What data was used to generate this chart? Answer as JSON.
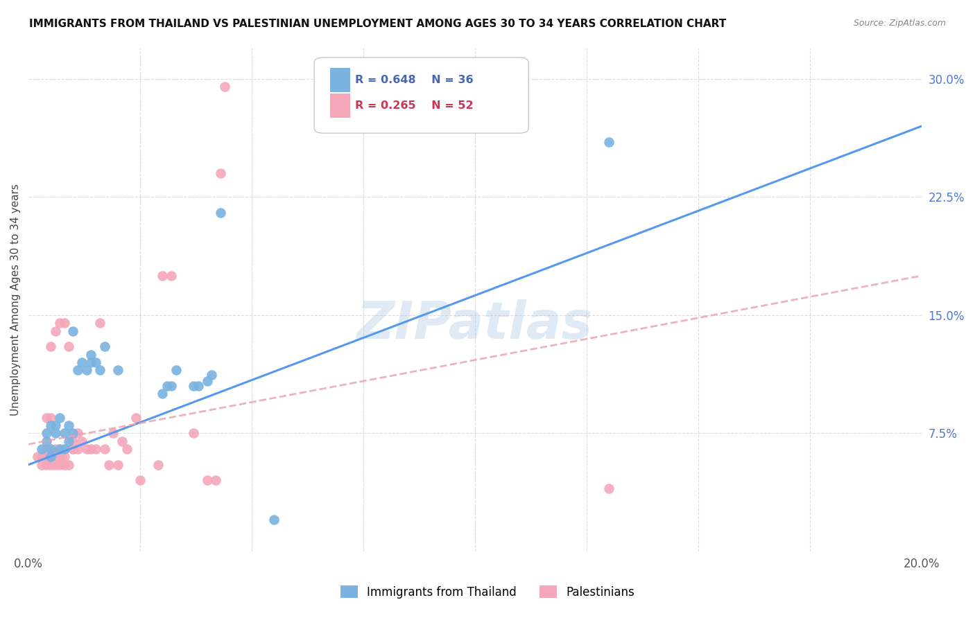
{
  "title": "IMMIGRANTS FROM THAILAND VS PALESTINIAN UNEMPLOYMENT AMONG AGES 30 TO 34 YEARS CORRELATION CHART",
  "source": "Source: ZipAtlas.com",
  "ylabel": "Unemployment Among Ages 30 to 34 years",
  "xlim": [
    0.0,
    0.2
  ],
  "ylim": [
    0.0,
    0.32
  ],
  "xticks": [
    0.0,
    0.025,
    0.05,
    0.075,
    0.1,
    0.125,
    0.15,
    0.175,
    0.2
  ],
  "yticks_right": [
    0.075,
    0.15,
    0.225,
    0.3
  ],
  "grid_color": "#dddddd",
  "background_color": "#ffffff",
  "watermark": "ZIPatlas",
  "blue_color": "#7ab3e0",
  "pink_color": "#f4a7b9",
  "line_blue": "#5599ee",
  "line_pink": "#e8a0b0",
  "blue_scatter": [
    [
      0.003,
      0.065
    ],
    [
      0.004,
      0.07
    ],
    [
      0.004,
      0.075
    ],
    [
      0.005,
      0.06
    ],
    [
      0.005,
      0.065
    ],
    [
      0.005,
      0.08
    ],
    [
      0.006,
      0.075
    ],
    [
      0.006,
      0.08
    ],
    [
      0.007,
      0.065
    ],
    [
      0.007,
      0.085
    ],
    [
      0.008,
      0.065
    ],
    [
      0.008,
      0.075
    ],
    [
      0.009,
      0.07
    ],
    [
      0.009,
      0.08
    ],
    [
      0.01,
      0.075
    ],
    [
      0.01,
      0.14
    ],
    [
      0.011,
      0.115
    ],
    [
      0.012,
      0.12
    ],
    [
      0.013,
      0.115
    ],
    [
      0.014,
      0.12
    ],
    [
      0.014,
      0.125
    ],
    [
      0.015,
      0.12
    ],
    [
      0.016,
      0.115
    ],
    [
      0.017,
      0.13
    ],
    [
      0.02,
      0.115
    ],
    [
      0.03,
      0.1
    ],
    [
      0.031,
      0.105
    ],
    [
      0.032,
      0.105
    ],
    [
      0.033,
      0.115
    ],
    [
      0.037,
      0.105
    ],
    [
      0.038,
      0.105
    ],
    [
      0.04,
      0.108
    ],
    [
      0.041,
      0.112
    ],
    [
      0.043,
      0.215
    ],
    [
      0.055,
      0.02
    ],
    [
      0.13,
      0.26
    ]
  ],
  "pink_scatter": [
    [
      0.002,
      0.06
    ],
    [
      0.003,
      0.055
    ],
    [
      0.003,
      0.06
    ],
    [
      0.004,
      0.055
    ],
    [
      0.004,
      0.06
    ],
    [
      0.004,
      0.065
    ],
    [
      0.004,
      0.085
    ],
    [
      0.005,
      0.055
    ],
    [
      0.005,
      0.06
    ],
    [
      0.005,
      0.065
    ],
    [
      0.005,
      0.085
    ],
    [
      0.005,
      0.13
    ],
    [
      0.006,
      0.055
    ],
    [
      0.006,
      0.06
    ],
    [
      0.006,
      0.065
    ],
    [
      0.006,
      0.14
    ],
    [
      0.007,
      0.055
    ],
    [
      0.007,
      0.06
    ],
    [
      0.007,
      0.065
    ],
    [
      0.007,
      0.145
    ],
    [
      0.008,
      0.055
    ],
    [
      0.008,
      0.06
    ],
    [
      0.008,
      0.065
    ],
    [
      0.008,
      0.145
    ],
    [
      0.009,
      0.055
    ],
    [
      0.009,
      0.13
    ],
    [
      0.01,
      0.065
    ],
    [
      0.01,
      0.07
    ],
    [
      0.01,
      0.065
    ],
    [
      0.011,
      0.065
    ],
    [
      0.011,
      0.075
    ],
    [
      0.012,
      0.07
    ],
    [
      0.013,
      0.065
    ],
    [
      0.014,
      0.065
    ],
    [
      0.015,
      0.065
    ],
    [
      0.016,
      0.145
    ],
    [
      0.017,
      0.065
    ],
    [
      0.018,
      0.055
    ],
    [
      0.019,
      0.075
    ],
    [
      0.02,
      0.055
    ],
    [
      0.021,
      0.07
    ],
    [
      0.022,
      0.065
    ],
    [
      0.024,
      0.085
    ],
    [
      0.025,
      0.045
    ],
    [
      0.029,
      0.055
    ],
    [
      0.03,
      0.175
    ],
    [
      0.032,
      0.175
    ],
    [
      0.037,
      0.075
    ],
    [
      0.04,
      0.045
    ],
    [
      0.042,
      0.045
    ],
    [
      0.043,
      0.24
    ],
    [
      0.044,
      0.295
    ],
    [
      0.13,
      0.04
    ]
  ],
  "blue_trendline_x": [
    0.0,
    0.2
  ],
  "blue_trendline_y": [
    0.055,
    0.27
  ],
  "pink_trendline_x": [
    0.0,
    0.2
  ],
  "pink_trendline_y": [
    0.068,
    0.175
  ]
}
